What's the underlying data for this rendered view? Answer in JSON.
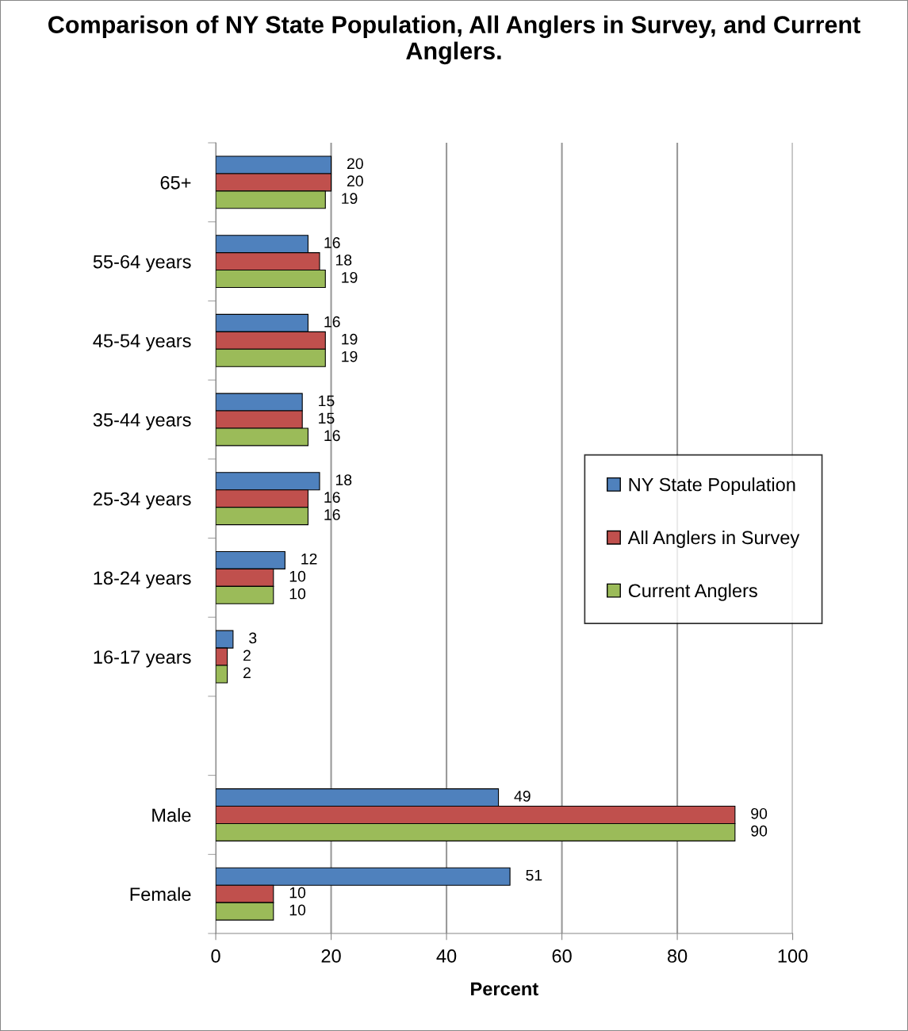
{
  "chart_data": {
    "type": "bar",
    "orientation": "horizontal",
    "title": "Comparison of NY State Population, All Anglers in Survey, and Current Anglers.",
    "xlabel": "Percent",
    "categories": [
      "65+",
      "55-64 years",
      "45-54 years",
      "35-44 years",
      "25-34 years",
      "18-24 years",
      "16-17 years",
      null,
      "Male",
      "Female"
    ],
    "series": [
      {
        "name": "NY State Population",
        "color": "#4f81bd",
        "values": [
          20,
          16,
          16,
          15,
          18,
          12,
          3,
          null,
          49,
          51
        ]
      },
      {
        "name": "All Anglers in Survey",
        "color": "#c0504d",
        "values": [
          20,
          18,
          19,
          15,
          16,
          10,
          2,
          null,
          90,
          10
        ]
      },
      {
        "name": "Current Anglers",
        "color": "#9bbb59",
        "values": [
          19,
          19,
          19,
          16,
          16,
          10,
          2,
          null,
          90,
          10
        ]
      }
    ],
    "xlim": [
      0,
      100
    ],
    "xticks": [
      0,
      20,
      40,
      60,
      80,
      100
    ],
    "grid": "x",
    "legend": "right",
    "data_labels": true
  }
}
